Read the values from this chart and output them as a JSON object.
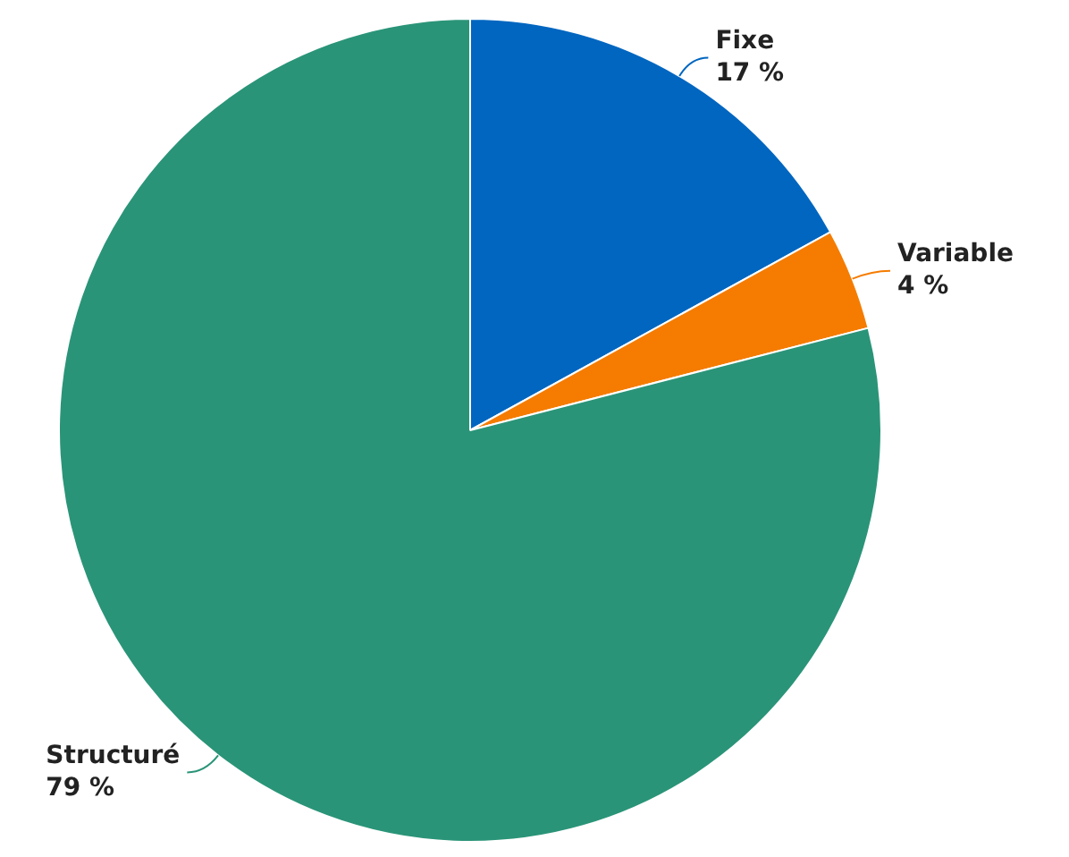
{
  "chart_data": {
    "type": "pie",
    "categories": [
      "Fixe",
      "Variable",
      "Structuré"
    ],
    "values": [
      17,
      4,
      79
    ],
    "value_labels": [
      "17 %",
      "4 %",
      "79 %"
    ],
    "colors": [
      "#0066c0",
      "#f57c00",
      "#2a9478"
    ]
  }
}
